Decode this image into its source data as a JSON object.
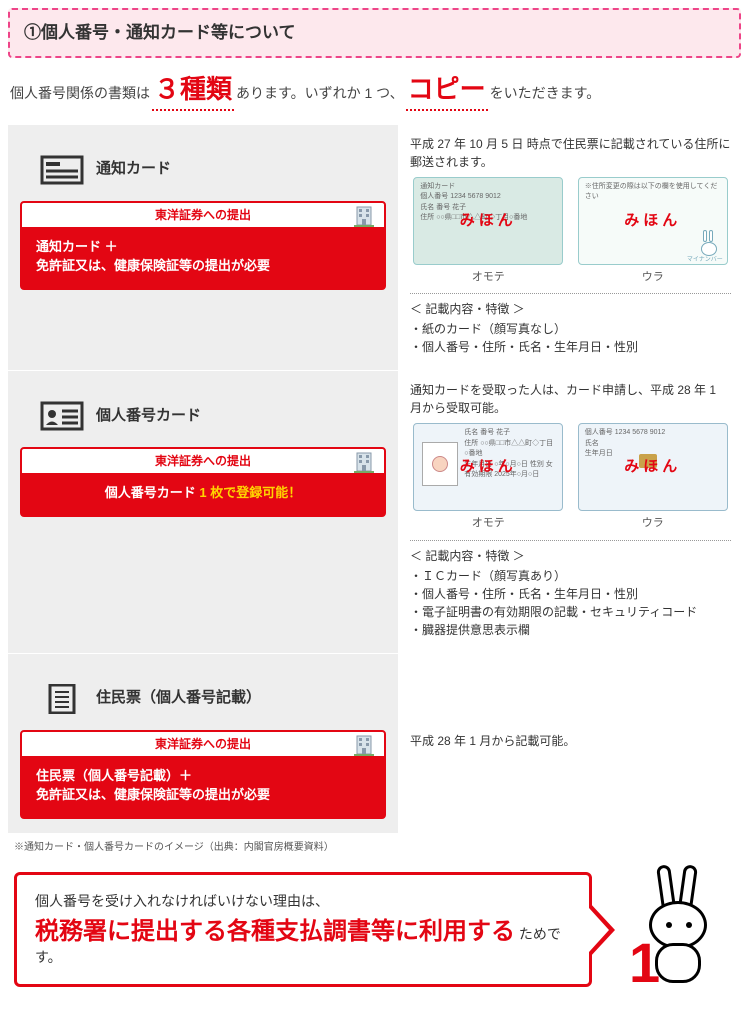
{
  "header": {
    "title": "①個人番号・通知カード等について"
  },
  "intro": {
    "p1": "個人番号関係の書類は",
    "em1": "３種類",
    "p2": "あります。いずれか 1 つ、",
    "em2": "コピー",
    "p3": "をいただきます。"
  },
  "redbox_head": "東洋証券への提出",
  "sections": [
    {
      "icon": "doc-lines-icon",
      "title": "通知カード",
      "red_body_lines": [
        "通知カード ＋",
        "免許証又は、健康保険証等の提出が必要"
      ],
      "yellow_lines": [],
      "right_intro": "平成 27 年 10 月 5 日 時点で住民票に記載されている住所に郵送されます。",
      "front_label": "オモテ",
      "back_label": "ウラ",
      "feat_title": "＜ 記載内容・特徴 ＞",
      "features": [
        "紙のカード（顔写真なし）",
        "個人番号・住所・氏名・生年月日・性別"
      ],
      "card_style": "green",
      "card_front_text": [
        "通知カード",
        "個人番号 1234 5678 9012",
        "氏名 番号 花子",
        "",
        "住所 ○○県□□市△△町◇丁目○番地"
      ],
      "card_back_text": [
        "※住所変更の際は以下の欄を使用してください"
      ],
      "has_photo": false,
      "has_chip": false,
      "has_bunny": true
    },
    {
      "icon": "id-card-icon",
      "title": "個人番号カード",
      "red_body_lines": [
        "個人番号カード"
      ],
      "yellow_lines": [
        " 1 枚で登録可能！"
      ],
      "right_intro": "通知カードを受取った人は、カード申請し、平成 28 年 1 月から受取可能。",
      "front_label": "オモテ",
      "back_label": "ウラ",
      "feat_title": "＜ 記載内容・特徴 ＞",
      "features": [
        "ＩＣカード（顔写真あり）",
        "個人番号・住所・氏名・生年月日・性別",
        "電子証明書の有効期限の記載・セキュリティコード",
        "臓器提供意思表示欄"
      ],
      "card_style": "blue",
      "card_front_text": [
        "氏名 番号 花子",
        "住所 ○○県□□市△△町◇丁目○番地",
        "生年月日 ○年○月○日  性別 女",
        "有効期限 2025年○月○日"
      ],
      "card_back_text": [
        "個人番号 1234 5678 9012",
        "氏名",
        "生年月日"
      ],
      "has_photo": true,
      "has_chip": true,
      "has_bunny": false
    },
    {
      "icon": "paper-icon",
      "title": "住民票（個人番号記載）",
      "red_body_lines": [
        "住民票（個人番号記載）＋",
        "免許証又は、健康保険証等の提出が必要"
      ],
      "yellow_lines": [],
      "right_intro": "平成 28 年 1 月から記載可能。",
      "front_label": "",
      "back_label": "",
      "feat_title": "",
      "features": [],
      "card_style": "",
      "card_front_text": [],
      "card_back_text": [],
      "has_photo": false,
      "has_chip": false,
      "has_bunny": false
    }
  ],
  "note": "※通知カード・個人番号カードのイメージ（出典：内閣官房概要資料）",
  "reason": {
    "line1": "個人番号を受け入れなければいけない理由は、",
    "big": "税務署に提出する各種支払調書等に利用する",
    "after": " ためです。"
  },
  "colors": {
    "accent": "#e30613",
    "header_bg": "#fde8ed",
    "section_bg": "#eeeeee",
    "yellow": "#ffd400"
  }
}
